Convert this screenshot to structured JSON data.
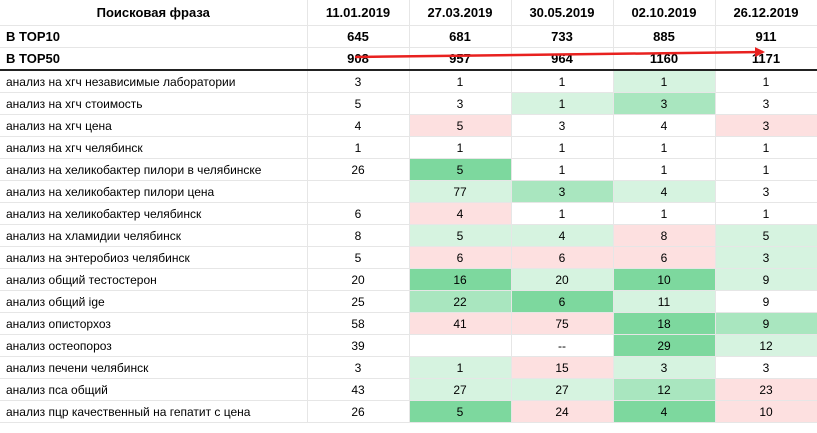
{
  "header": {
    "phrase_label": "Поисковая фраза",
    "dates": [
      "11.01.2019",
      "27.03.2019",
      "30.05.2019",
      "02.10.2019",
      "26.12.2019"
    ]
  },
  "summary": {
    "top10": {
      "label": "В TOP10",
      "values": [
        "645",
        "681",
        "733",
        "885",
        "911"
      ]
    },
    "top50": {
      "label": "В TOP50",
      "values": [
        "908",
        "957",
        "964",
        "1160",
        "1171"
      ]
    }
  },
  "colors": {
    "dark_green": "#7dd89e",
    "mid_green": "#a9e6bf",
    "light_green": "#d6f3e0",
    "pink": "#fde0e0",
    "arrow_red": "#e8211f"
  },
  "rows": [
    {
      "phrase": "анализ на хгч независимые лаборатории",
      "values": [
        "3",
        "1",
        "1",
        "1",
        "1"
      ],
      "colors": [
        "",
        "",
        "",
        "light_green",
        ""
      ]
    },
    {
      "phrase": "анализ на хгч стоимость",
      "values": [
        "5",
        "3",
        "1",
        "3",
        "3"
      ],
      "colors": [
        "",
        "",
        "light_green",
        "mid_green",
        ""
      ]
    },
    {
      "phrase": "анализ на хгч цена",
      "values": [
        "4",
        "5",
        "3",
        "4",
        "3"
      ],
      "colors": [
        "",
        "pink",
        "",
        "",
        "pink"
      ]
    },
    {
      "phrase": "анализ на хгч челябинск",
      "values": [
        "1",
        "1",
        "1",
        "1",
        "1"
      ],
      "colors": [
        "",
        "",
        "",
        "",
        ""
      ]
    },
    {
      "phrase": "анализ на хеликобактер пилори в челябинске",
      "values": [
        "26",
        "5",
        "1",
        "1",
        "1"
      ],
      "colors": [
        "",
        "dark_green",
        "",
        "",
        ""
      ]
    },
    {
      "phrase": "анализ на хеликобактер пилори цена",
      "values": [
        "",
        "77",
        "3",
        "4",
        "3"
      ],
      "colors": [
        "",
        "light_green",
        "mid_green",
        "light_green",
        ""
      ]
    },
    {
      "phrase": "анализ на хеликобактер челябинск",
      "values": [
        "6",
        "4",
        "1",
        "1",
        "1"
      ],
      "colors": [
        "",
        "pink",
        "",
        "",
        ""
      ]
    },
    {
      "phrase": "анализ на хламидии челябинск",
      "values": [
        "8",
        "5",
        "4",
        "8",
        "5"
      ],
      "colors": [
        "",
        "light_green",
        "light_green",
        "pink",
        "light_green"
      ]
    },
    {
      "phrase": "анализ на энтеробиоз челябинск",
      "values": [
        "5",
        "6",
        "6",
        "6",
        "3"
      ],
      "colors": [
        "",
        "pink",
        "pink",
        "pink",
        "light_green"
      ]
    },
    {
      "phrase": "анализ общий тестостерон",
      "values": [
        "20",
        "16",
        "20",
        "10",
        "9"
      ],
      "colors": [
        "",
        "dark_green",
        "light_green",
        "dark_green",
        "light_green"
      ]
    },
    {
      "phrase": "анализ общий ige",
      "values": [
        "25",
        "22",
        "6",
        "11",
        "9"
      ],
      "colors": [
        "",
        "mid_green",
        "dark_green",
        "light_green",
        ""
      ]
    },
    {
      "phrase": "анализ описторхоз",
      "values": [
        "58",
        "41",
        "75",
        "18",
        "9"
      ],
      "colors": [
        "",
        "pink",
        "pink",
        "dark_green",
        "mid_green"
      ]
    },
    {
      "phrase": "анализ остеопороз",
      "values": [
        "39",
        "",
        "--",
        "29",
        "12"
      ],
      "colors": [
        "",
        "",
        "",
        "dark_green",
        "light_green"
      ]
    },
    {
      "phrase": "анализ печени челябинск",
      "values": [
        "3",
        "1",
        "15",
        "3",
        "3"
      ],
      "colors": [
        "",
        "light_green",
        "pink",
        "light_green",
        ""
      ]
    },
    {
      "phrase": "анализ пса общий",
      "values": [
        "43",
        "27",
        "27",
        "12",
        "23"
      ],
      "colors": [
        "",
        "light_green",
        "light_green",
        "mid_green",
        "pink"
      ]
    },
    {
      "phrase": "анализ пцр качественный на гепатит с цена",
      "values": [
        "26",
        "5",
        "24",
        "4",
        "10"
      ],
      "colors": [
        "",
        "dark_green",
        "pink",
        "dark_green",
        "pink"
      ]
    }
  ]
}
